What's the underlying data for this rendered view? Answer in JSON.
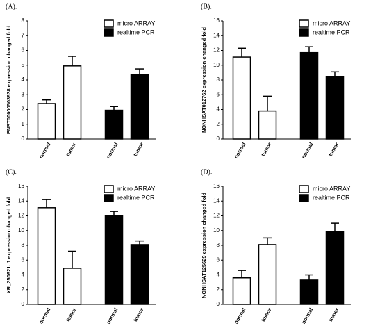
{
  "chart_data": [
    {
      "type": "bar",
      "label": "(A).",
      "ylabel": "ENST00000503938 expression changed fold",
      "categories": [
        "normal",
        "tumor",
        "normal",
        "tumor"
      ],
      "series": [
        {
          "name": "micro ARRAY",
          "color": "#ffffff",
          "values": [
            2.4,
            4.95,
            null,
            null
          ],
          "errors": [
            0.25,
            0.65,
            null,
            null
          ]
        },
        {
          "name": "realtime PCR",
          "color": "#000000",
          "values": [
            null,
            null,
            1.95,
            4.35
          ],
          "errors": [
            null,
            null,
            0.25,
            0.4
          ]
        }
      ],
      "ylim": [
        0,
        8
      ],
      "yticks": [
        0,
        1,
        2,
        3,
        4,
        5,
        6,
        7,
        8
      ]
    },
    {
      "type": "bar",
      "label": "(B).",
      "ylabel": "NONHSAT012762 expression changed fold",
      "categories": [
        "normal",
        "tumor",
        "normal",
        "tumor"
      ],
      "series": [
        {
          "name": "micro ARRAY",
          "color": "#ffffff",
          "values": [
            11.1,
            3.8,
            null,
            null
          ],
          "errors": [
            1.2,
            2.0,
            null,
            null
          ]
        },
        {
          "name": "realtime PCR",
          "color": "#000000",
          "values": [
            null,
            null,
            11.7,
            8.4
          ],
          "errors": [
            null,
            null,
            0.8,
            0.7
          ]
        }
      ],
      "ylim": [
        0,
        16
      ],
      "yticks": [
        0,
        2,
        4,
        6,
        8,
        10,
        12,
        14,
        16
      ]
    },
    {
      "type": "bar",
      "label": "(C).",
      "ylabel": "XR_250621. 1 expression changed fold",
      "categories": [
        "normal",
        "tumor",
        "normal",
        "tumor"
      ],
      "series": [
        {
          "name": "micro ARRAY",
          "color": "#ffffff",
          "values": [
            13.1,
            4.9,
            null,
            null
          ],
          "errors": [
            1.1,
            2.3,
            null,
            null
          ]
        },
        {
          "name": "realtime PCR",
          "color": "#000000",
          "values": [
            null,
            null,
            12.0,
            8.1
          ],
          "errors": [
            null,
            null,
            0.6,
            0.5
          ]
        }
      ],
      "ylim": [
        0,
        16
      ],
      "yticks": [
        0,
        2,
        4,
        6,
        8,
        10,
        12,
        14,
        16
      ]
    },
    {
      "type": "bar",
      "label": "(D).",
      "ylabel": "NONHSAT125629 expression changed fold",
      "categories": [
        "normal",
        "tumor",
        "normal",
        "tumor"
      ],
      "series": [
        {
          "name": "micro ARRAY",
          "color": "#ffffff",
          "values": [
            3.6,
            8.1,
            null,
            null
          ],
          "errors": [
            1.0,
            0.9,
            null,
            null
          ]
        },
        {
          "name": "realtime PCR",
          "color": "#000000",
          "values": [
            null,
            null,
            3.3,
            9.9
          ],
          "errors": [
            null,
            null,
            0.7,
            1.1
          ]
        }
      ],
      "ylim": [
        0,
        16
      ],
      "yticks": [
        0,
        2,
        4,
        6,
        8,
        10,
        12,
        14,
        16
      ]
    }
  ]
}
